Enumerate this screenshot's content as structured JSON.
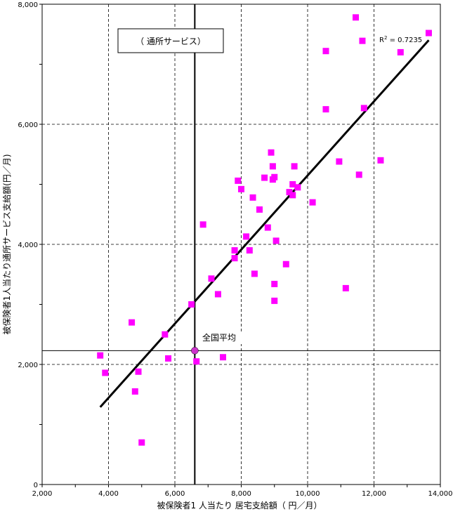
{
  "chart_data": {
    "type": "scatter",
    "title": "（ 通所サービス）",
    "xlabel": "被保険者1 人当たり 居宅支給額（ 円／月）",
    "ylabel": "被保険者1人当たり通所サービス支給額(円／月)",
    "xlim": [
      2000,
      14000
    ],
    "ylim": [
      0,
      8000
    ],
    "x_ticks": [
      2000,
      4000,
      6000,
      8000,
      10000,
      12000,
      14000
    ],
    "y_ticks": [
      0,
      2000,
      4000,
      6000,
      8000
    ],
    "x_tick_labels": [
      "2,000",
      "4,000",
      "6,000",
      "8,000",
      "10,000",
      "12,000",
      "14,000"
    ],
    "y_tick_labels": [
      "0",
      "2,000",
      "4,000",
      "6,000",
      "8,000"
    ],
    "grid": true,
    "marker_color": "#ff00ff",
    "national_avg_color": "#cc33cc",
    "points": [
      {
        "x": 3750,
        "y": 2150
      },
      {
        "x": 3900,
        "y": 1860
      },
      {
        "x": 4700,
        "y": 2700
      },
      {
        "x": 4800,
        "y": 1550
      },
      {
        "x": 4900,
        "y": 1880
      },
      {
        "x": 5000,
        "y": 700
      },
      {
        "x": 5700,
        "y": 2500
      },
      {
        "x": 5800,
        "y": 2100
      },
      {
        "x": 6500,
        "y": 3000
      },
      {
        "x": 6650,
        "y": 2050
      },
      {
        "x": 6850,
        "y": 4330
      },
      {
        "x": 7100,
        "y": 3430
      },
      {
        "x": 7300,
        "y": 3170
      },
      {
        "x": 7450,
        "y": 2120
      },
      {
        "x": 7800,
        "y": 3900
      },
      {
        "x": 7800,
        "y": 3770
      },
      {
        "x": 7900,
        "y": 5060
      },
      {
        "x": 8000,
        "y": 4920
      },
      {
        "x": 8150,
        "y": 4130
      },
      {
        "x": 8250,
        "y": 3900
      },
      {
        "x": 8350,
        "y": 4780
      },
      {
        "x": 8400,
        "y": 3510
      },
      {
        "x": 8550,
        "y": 4580
      },
      {
        "x": 8700,
        "y": 5110
      },
      {
        "x": 8800,
        "y": 4280
      },
      {
        "x": 8900,
        "y": 5530
      },
      {
        "x": 8950,
        "y": 5300
      },
      {
        "x": 8950,
        "y": 5080
      },
      {
        "x": 9000,
        "y": 5120
      },
      {
        "x": 9000,
        "y": 3340
      },
      {
        "x": 9000,
        "y": 3060
      },
      {
        "x": 9050,
        "y": 4060
      },
      {
        "x": 9350,
        "y": 3670
      },
      {
        "x": 9450,
        "y": 4870
      },
      {
        "x": 9550,
        "y": 4820
      },
      {
        "x": 9550,
        "y": 5000
      },
      {
        "x": 9600,
        "y": 5300
      },
      {
        "x": 9700,
        "y": 4950
      },
      {
        "x": 10150,
        "y": 4700
      },
      {
        "x": 10550,
        "y": 7220
      },
      {
        "x": 10550,
        "y": 6250
      },
      {
        "x": 10950,
        "y": 5380
      },
      {
        "x": 11150,
        "y": 3270
      },
      {
        "x": 11450,
        "y": 7780
      },
      {
        "x": 11550,
        "y": 5160
      },
      {
        "x": 11650,
        "y": 7390
      },
      {
        "x": 11700,
        "y": 6270
      },
      {
        "x": 12200,
        "y": 5400
      },
      {
        "x": 12800,
        "y": 7200
      },
      {
        "x": 13650,
        "y": 7520
      }
    ],
    "trendline": {
      "x1": 3750,
      "y1": 1290,
      "x2": 13650,
      "y2": 7400
    },
    "r2_label": "0.7235",
    "national_average": {
      "x": 6600,
      "y": 2230,
      "label": "全国平均"
    }
  }
}
